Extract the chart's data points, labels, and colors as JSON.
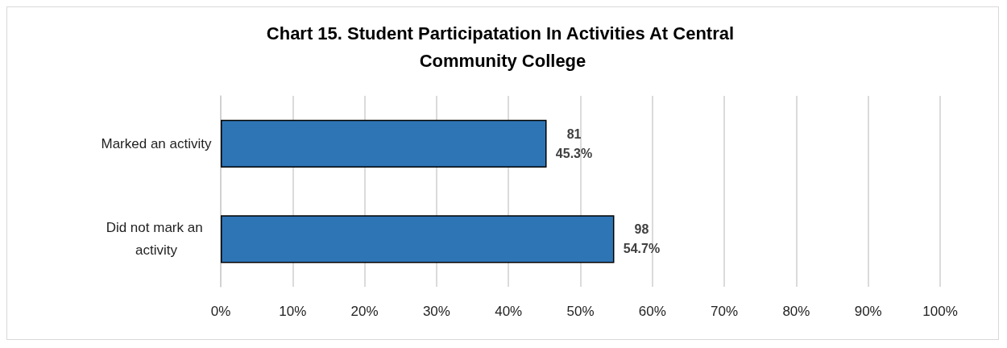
{
  "chart_data": {
    "type": "bar",
    "orientation": "horizontal",
    "title": "Chart 15. Student Participatation In Activities At Central Community College",
    "categories": [
      "Marked an activity",
      "Did not mark an activity"
    ],
    "values": [
      45.3,
      54.7
    ],
    "value_labels": [
      "81\n45.3%",
      "98\n54.7%"
    ],
    "color": "#2e75b6",
    "xlim": [
      0,
      100
    ],
    "xticks": [
      {
        "value": 0,
        "label": "0%"
      },
      {
        "value": 10,
        "label": "10%"
      },
      {
        "value": 20,
        "label": "20%"
      },
      {
        "value": 30,
        "label": "30%"
      },
      {
        "value": 40,
        "label": "40%"
      },
      {
        "value": 50,
        "label": "50%"
      },
      {
        "value": 60,
        "label": "60%"
      },
      {
        "value": 70,
        "label": "70%"
      },
      {
        "value": 80,
        "label": "80%"
      },
      {
        "value": 90,
        "label": "90%"
      },
      {
        "value": 100,
        "label": "100%"
      }
    ],
    "grid": "x"
  }
}
